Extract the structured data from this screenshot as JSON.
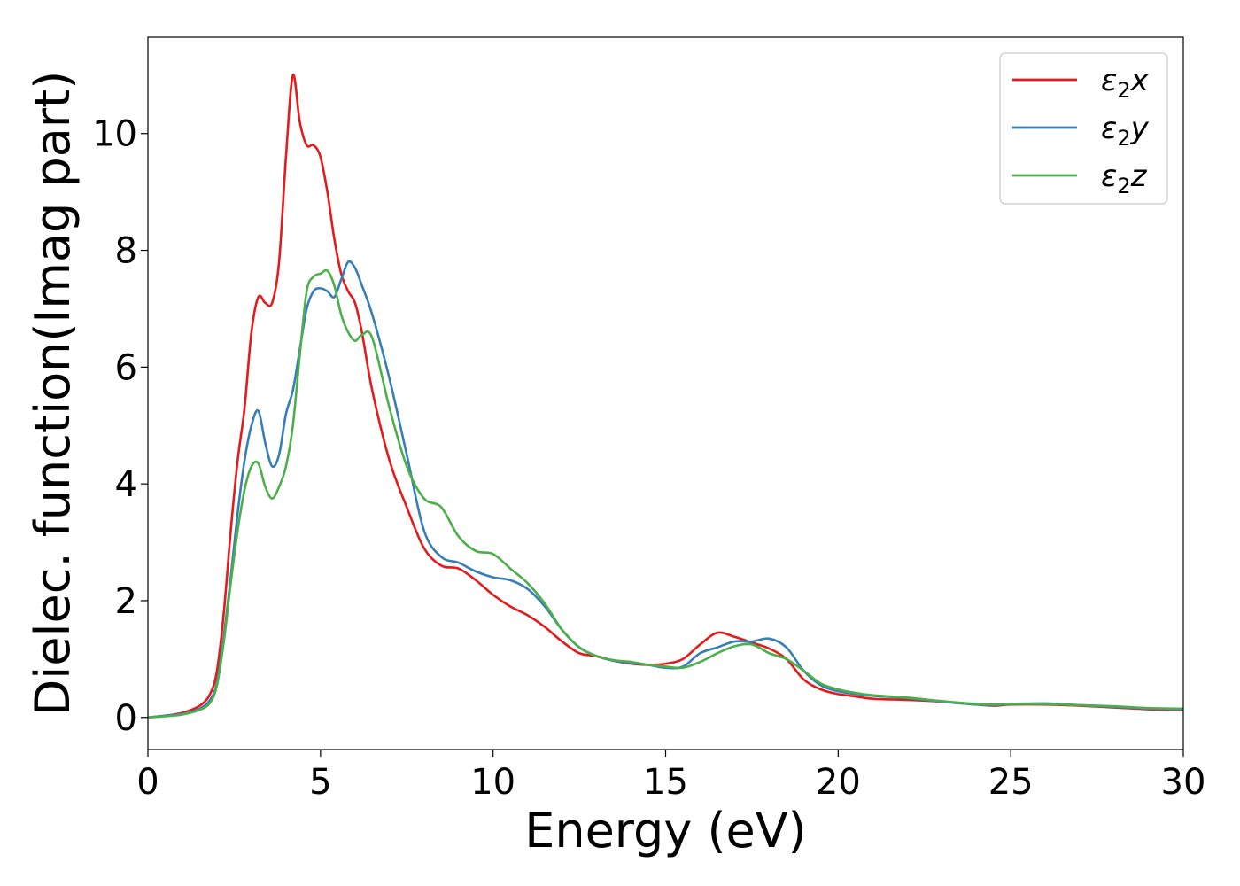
{
  "chart_data": {
    "type": "line",
    "title": "",
    "xlabel": "Energy (eV)",
    "ylabel": "Dielec. function(Imag part)",
    "xlim": [
      0,
      30
    ],
    "ylim": [
      -0.55,
      11.65
    ],
    "xticks": [
      0,
      5,
      10,
      15,
      20,
      25,
      30
    ],
    "yticks": [
      0,
      2,
      4,
      6,
      8,
      10
    ],
    "grid": false,
    "legend_position": "top-right",
    "series": [
      {
        "name": "ε₂x",
        "legend_base": "ε",
        "legend_sub": "2",
        "legend_var": "x",
        "color": "#e41a1c",
        "points": [
          [
            0,
            0
          ],
          [
            0.5,
            0.03
          ],
          [
            1.0,
            0.08
          ],
          [
            1.5,
            0.2
          ],
          [
            1.8,
            0.4
          ],
          [
            2.0,
            0.8
          ],
          [
            2.2,
            1.8
          ],
          [
            2.4,
            3.2
          ],
          [
            2.6,
            4.4
          ],
          [
            2.8,
            5.3
          ],
          [
            3.0,
            6.6
          ],
          [
            3.2,
            7.2
          ],
          [
            3.4,
            7.1
          ],
          [
            3.6,
            7.1
          ],
          [
            3.8,
            7.8
          ],
          [
            4.0,
            9.6
          ],
          [
            4.2,
            11.0
          ],
          [
            4.4,
            10.2
          ],
          [
            4.6,
            9.8
          ],
          [
            4.8,
            9.8
          ],
          [
            5.0,
            9.6
          ],
          [
            5.2,
            9.0
          ],
          [
            5.4,
            8.2
          ],
          [
            5.6,
            7.6
          ],
          [
            5.8,
            7.3
          ],
          [
            6.0,
            7.1
          ],
          [
            6.2,
            6.6
          ],
          [
            6.5,
            5.6
          ],
          [
            7.0,
            4.4
          ],
          [
            7.5,
            3.6
          ],
          [
            8.0,
            2.9
          ],
          [
            8.5,
            2.6
          ],
          [
            9.0,
            2.55
          ],
          [
            9.5,
            2.35
          ],
          [
            10.0,
            2.1
          ],
          [
            10.5,
            1.9
          ],
          [
            11.0,
            1.75
          ],
          [
            11.5,
            1.55
          ],
          [
            12.0,
            1.3
          ],
          [
            12.5,
            1.1
          ],
          [
            13.0,
            1.05
          ],
          [
            13.5,
            0.97
          ],
          [
            14.0,
            0.92
          ],
          [
            14.5,
            0.9
          ],
          [
            15.0,
            0.92
          ],
          [
            15.5,
            1.0
          ],
          [
            16.0,
            1.25
          ],
          [
            16.5,
            1.45
          ],
          [
            17.0,
            1.38
          ],
          [
            17.5,
            1.28
          ],
          [
            18.0,
            1.18
          ],
          [
            18.5,
            1.0
          ],
          [
            19.0,
            0.65
          ],
          [
            19.5,
            0.48
          ],
          [
            20.0,
            0.4
          ],
          [
            20.5,
            0.36
          ],
          [
            21.0,
            0.32
          ],
          [
            22.0,
            0.3
          ],
          [
            23.0,
            0.27
          ],
          [
            24.0,
            0.22
          ],
          [
            24.5,
            0.2
          ],
          [
            25.0,
            0.22
          ],
          [
            26.0,
            0.22
          ],
          [
            27.0,
            0.2
          ],
          [
            28.0,
            0.17
          ],
          [
            29.0,
            0.14
          ],
          [
            30.0,
            0.13
          ]
        ]
      },
      {
        "name": "ε₂y",
        "legend_base": "ε",
        "legend_sub": "2",
        "legend_var": "y",
        "color": "#377eb8",
        "points": [
          [
            0,
            0
          ],
          [
            0.5,
            0.03
          ],
          [
            1.0,
            0.06
          ],
          [
            1.5,
            0.15
          ],
          [
            1.8,
            0.3
          ],
          [
            2.0,
            0.6
          ],
          [
            2.2,
            1.4
          ],
          [
            2.4,
            2.4
          ],
          [
            2.6,
            3.5
          ],
          [
            2.8,
            4.4
          ],
          [
            3.0,
            5.0
          ],
          [
            3.2,
            5.25
          ],
          [
            3.4,
            4.7
          ],
          [
            3.6,
            4.3
          ],
          [
            3.8,
            4.5
          ],
          [
            4.0,
            5.2
          ],
          [
            4.2,
            5.6
          ],
          [
            4.4,
            6.3
          ],
          [
            4.6,
            7.0
          ],
          [
            4.8,
            7.3
          ],
          [
            5.0,
            7.35
          ],
          [
            5.2,
            7.3
          ],
          [
            5.4,
            7.2
          ],
          [
            5.6,
            7.5
          ],
          [
            5.8,
            7.8
          ],
          [
            6.0,
            7.7
          ],
          [
            6.2,
            7.4
          ],
          [
            6.5,
            6.9
          ],
          [
            7.0,
            5.8
          ],
          [
            7.5,
            4.5
          ],
          [
            8.0,
            3.2
          ],
          [
            8.5,
            2.75
          ],
          [
            9.0,
            2.65
          ],
          [
            9.5,
            2.5
          ],
          [
            10.0,
            2.4
          ],
          [
            10.5,
            2.35
          ],
          [
            11.0,
            2.2
          ],
          [
            11.5,
            1.9
          ],
          [
            12.0,
            1.5
          ],
          [
            12.5,
            1.2
          ],
          [
            13.0,
            1.05
          ],
          [
            13.5,
            0.97
          ],
          [
            14.0,
            0.93
          ],
          [
            14.5,
            0.9
          ],
          [
            15.0,
            0.85
          ],
          [
            15.5,
            0.87
          ],
          [
            16.0,
            1.1
          ],
          [
            16.5,
            1.2
          ],
          [
            17.0,
            1.3
          ],
          [
            17.5,
            1.3
          ],
          [
            18.0,
            1.35
          ],
          [
            18.5,
            1.2
          ],
          [
            19.0,
            0.8
          ],
          [
            19.5,
            0.55
          ],
          [
            20.0,
            0.45
          ],
          [
            20.5,
            0.4
          ],
          [
            21.0,
            0.37
          ],
          [
            22.0,
            0.33
          ],
          [
            23.0,
            0.27
          ],
          [
            24.0,
            0.22
          ],
          [
            24.5,
            0.21
          ],
          [
            25.0,
            0.23
          ],
          [
            26.0,
            0.24
          ],
          [
            27.0,
            0.21
          ],
          [
            28.0,
            0.18
          ],
          [
            29.0,
            0.15
          ],
          [
            30.0,
            0.14
          ]
        ]
      },
      {
        "name": "ε₂z",
        "legend_base": "ε",
        "legend_sub": "2",
        "legend_var": "z",
        "color": "#4daf4a",
        "points": [
          [
            0,
            0
          ],
          [
            0.5,
            0.02
          ],
          [
            1.0,
            0.05
          ],
          [
            1.5,
            0.13
          ],
          [
            1.8,
            0.25
          ],
          [
            2.0,
            0.55
          ],
          [
            2.2,
            1.3
          ],
          [
            2.4,
            2.3
          ],
          [
            2.6,
            3.2
          ],
          [
            2.8,
            3.9
          ],
          [
            3.0,
            4.3
          ],
          [
            3.2,
            4.35
          ],
          [
            3.4,
            3.95
          ],
          [
            3.6,
            3.75
          ],
          [
            3.8,
            3.95
          ],
          [
            4.0,
            4.3
          ],
          [
            4.2,
            5.0
          ],
          [
            4.4,
            6.2
          ],
          [
            4.6,
            7.3
          ],
          [
            4.8,
            7.55
          ],
          [
            5.0,
            7.6
          ],
          [
            5.2,
            7.65
          ],
          [
            5.4,
            7.4
          ],
          [
            5.6,
            6.9
          ],
          [
            5.8,
            6.6
          ],
          [
            6.0,
            6.45
          ],
          [
            6.2,
            6.55
          ],
          [
            6.5,
            6.5
          ],
          [
            7.0,
            5.3
          ],
          [
            7.5,
            4.3
          ],
          [
            8.0,
            3.75
          ],
          [
            8.5,
            3.6
          ],
          [
            9.0,
            3.1
          ],
          [
            9.5,
            2.85
          ],
          [
            10.0,
            2.8
          ],
          [
            10.5,
            2.55
          ],
          [
            11.0,
            2.3
          ],
          [
            11.5,
            1.95
          ],
          [
            12.0,
            1.5
          ],
          [
            12.5,
            1.2
          ],
          [
            13.0,
            1.05
          ],
          [
            13.5,
            0.98
          ],
          [
            14.0,
            0.95
          ],
          [
            14.5,
            0.9
          ],
          [
            15.0,
            0.87
          ],
          [
            15.5,
            0.85
          ],
          [
            16.0,
            0.95
          ],
          [
            16.5,
            1.1
          ],
          [
            17.0,
            1.22
          ],
          [
            17.5,
            1.25
          ],
          [
            18.0,
            1.1
          ],
          [
            18.5,
            1.0
          ],
          [
            19.0,
            0.8
          ],
          [
            19.5,
            0.58
          ],
          [
            20.0,
            0.48
          ],
          [
            20.5,
            0.42
          ],
          [
            21.0,
            0.38
          ],
          [
            22.0,
            0.34
          ],
          [
            23.0,
            0.28
          ],
          [
            24.0,
            0.23
          ],
          [
            24.5,
            0.22
          ],
          [
            25.0,
            0.23
          ],
          [
            26.0,
            0.23
          ],
          [
            27.0,
            0.21
          ],
          [
            28.0,
            0.19
          ],
          [
            29.0,
            0.16
          ],
          [
            30.0,
            0.15
          ]
        ]
      }
    ]
  }
}
